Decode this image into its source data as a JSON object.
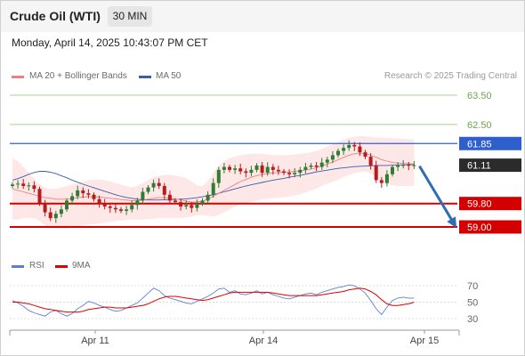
{
  "header": {
    "title": "Crude Oil (WTI)",
    "timeframe": "30 MIN"
  },
  "datetime": "Monday, April 14, 2025 10:43:07 PM CET",
  "copyright": "Research © 2025 Trading Central",
  "colors": {
    "ma20": "#f08080",
    "ma50": "#3a5ea8",
    "rsi": "#5b7fd6",
    "rsi_ma": "#e00000",
    "resistance_line": "#2e5fcc",
    "support_line": "#d40000",
    "target_line": "#a8d48a",
    "candle_up": "#2e7d32",
    "candle_down": "#b71c1c",
    "arrow": "#2f6db3"
  },
  "chart_data": [
    {
      "type": "candlestick",
      "title": "Crude Oil (WTI)",
      "interval": "30 MIN",
      "legend": [
        {
          "name": "MA 20 + Bollinger Bands",
          "color": "#f08080"
        },
        {
          "name": "MA 50",
          "color": "#3a5ea8"
        }
      ],
      "x_tick_labels": [
        "Apr 11",
        "Apr 14",
        "Apr 15"
      ],
      "ylim": [
        58.9,
        63.8
      ],
      "levels": [
        {
          "label": "63.50",
          "value": 63.5,
          "kind": "target"
        },
        {
          "label": "62.50",
          "value": 62.5,
          "kind": "target"
        },
        {
          "label": "61.85",
          "value": 61.85,
          "kind": "resistance"
        },
        {
          "label": "61.11",
          "value": 61.11,
          "kind": "last_price"
        },
        {
          "label": "59.80",
          "value": 59.8,
          "kind": "support"
        },
        {
          "label": "59.00",
          "value": 59.0,
          "kind": "support"
        }
      ],
      "close": [
        60.45,
        60.48,
        60.4,
        60.42,
        60.3,
        59.8,
        59.5,
        59.3,
        59.45,
        59.6,
        59.9,
        60.05,
        60.25,
        60.15,
        60.1,
        59.95,
        59.8,
        59.7,
        59.65,
        59.6,
        59.55,
        59.6,
        59.75,
        59.9,
        60.2,
        60.35,
        60.5,
        60.4,
        60.1,
        59.9,
        59.85,
        59.7,
        59.75,
        59.65,
        59.8,
        59.9,
        60.1,
        60.5,
        60.95,
        61.05,
        60.95,
        61.0,
        60.9,
        60.85,
        60.95,
        61.1,
        60.85,
        61.05,
        60.95,
        60.9,
        60.85,
        60.8,
        60.85,
        60.95,
        61.05,
        61.1,
        61.05,
        61.2,
        61.3,
        61.45,
        61.6,
        61.7,
        61.8,
        61.75,
        61.55,
        61.4,
        61.1,
        60.6,
        60.5,
        60.8,
        61.05,
        61.1,
        61.12,
        61.1,
        61.11
      ],
      "ma20": [
        60.3,
        60.25,
        60.2,
        60.15,
        60.1,
        60.05,
        60.0,
        59.98,
        59.95,
        59.95,
        59.95,
        59.98,
        60.0,
        60.02,
        60.03,
        60.03,
        60.02,
        60.0,
        59.98,
        59.96,
        59.94,
        59.92,
        59.9,
        59.9,
        59.92,
        59.95,
        59.98,
        60.0,
        60.0,
        59.98,
        59.96,
        59.92,
        59.88,
        59.85,
        59.85,
        59.88,
        59.95,
        60.05,
        60.15,
        60.25,
        60.35,
        60.45,
        60.55,
        60.62,
        60.7,
        60.75,
        60.8,
        60.82,
        60.85,
        60.86,
        60.87,
        60.88,
        60.9,
        60.92,
        60.95,
        60.98,
        61.02,
        61.08,
        61.15,
        61.22,
        61.3,
        61.38,
        61.45,
        61.5,
        61.52,
        61.5,
        61.45,
        61.38,
        61.3,
        61.25,
        61.2,
        61.18,
        61.17,
        61.16,
        61.15
      ],
      "bb_upper": [
        61.35,
        61.25,
        61.05,
        60.85,
        60.65,
        60.45,
        60.35,
        60.3,
        60.3,
        60.35,
        60.4,
        60.45,
        60.5,
        60.55,
        60.6,
        60.62,
        60.62,
        60.6,
        60.55,
        60.5,
        60.45,
        60.4,
        60.35,
        60.4,
        60.5,
        60.6,
        60.7,
        60.75,
        60.78,
        60.78,
        60.76,
        60.72,
        60.66,
        60.55,
        60.42,
        60.4,
        60.55,
        60.85,
        61.1,
        61.25,
        61.35,
        61.4,
        61.45,
        61.48,
        61.5,
        61.5,
        61.5,
        61.48,
        61.46,
        61.45,
        61.45,
        61.46,
        61.48,
        61.5,
        61.52,
        61.55,
        61.6,
        61.68,
        61.75,
        61.82,
        61.9,
        61.98,
        62.05,
        62.08,
        62.1,
        62.1,
        62.08,
        62.06,
        62.05,
        62.04,
        62.03,
        62.02,
        62.01,
        62.0,
        61.99
      ],
      "bb_lower": [
        59.25,
        59.25,
        59.3,
        59.3,
        59.3,
        59.2,
        59.05,
        58.98,
        58.95,
        58.95,
        58.95,
        58.98,
        59.02,
        59.05,
        59.08,
        59.1,
        59.12,
        59.15,
        59.18,
        59.2,
        59.22,
        59.24,
        59.25,
        59.25,
        59.25,
        59.26,
        59.28,
        59.3,
        59.3,
        59.3,
        59.3,
        59.3,
        59.32,
        59.35,
        59.4,
        59.4,
        59.38,
        59.36,
        59.4,
        59.5,
        59.6,
        59.7,
        59.78,
        59.82,
        59.86,
        59.9,
        59.93,
        59.96,
        59.98,
        60.0,
        60.02,
        60.04,
        60.08,
        60.12,
        60.18,
        60.25,
        60.32,
        60.4,
        60.48,
        60.55,
        60.62,
        60.7,
        60.78,
        60.84,
        60.88,
        60.9,
        60.82,
        60.7,
        60.55,
        60.46,
        60.42,
        60.4,
        60.4,
        60.4,
        60.4
      ],
      "ma50": [
        60.6,
        60.65,
        60.72,
        60.8,
        60.86,
        60.9,
        60.9,
        60.87,
        60.82,
        60.75,
        60.68,
        60.6,
        60.53,
        60.46,
        60.4,
        60.34,
        60.28,
        60.22,
        60.16,
        60.1,
        60.05,
        60.01,
        59.98,
        59.95,
        59.93,
        59.92,
        59.92,
        59.92,
        59.93,
        59.93,
        59.94,
        59.95,
        59.96,
        59.98,
        60.0,
        60.03,
        60.06,
        60.1,
        60.15,
        60.2,
        60.25,
        60.3,
        60.35,
        60.4,
        60.44,
        60.48,
        60.52,
        60.56,
        60.6,
        60.63,
        60.66,
        60.7,
        60.73,
        60.76,
        60.8,
        60.84,
        60.88,
        60.91,
        60.94,
        60.97,
        61.0,
        61.02,
        61.04,
        61.06,
        61.07,
        61.08,
        61.09,
        61.1,
        61.1,
        61.1,
        61.11,
        61.12,
        61.12,
        61.13,
        61.13
      ],
      "projection": {
        "from": 61.11,
        "to": 59.0,
        "direction": "down"
      }
    },
    {
      "type": "line",
      "title": "",
      "legend": [
        {
          "name": "RSI",
          "color": "#5b7fd6"
        },
        {
          "name": "9MA",
          "color": "#e00000"
        }
      ],
      "y_tick_labels": [
        "70",
        "50",
        "30"
      ],
      "ylim": [
        20,
        80
      ],
      "series": [
        {
          "name": "RSI",
          "values": [
            52,
            49,
            45,
            40,
            37,
            35,
            33,
            38,
            40,
            36,
            33,
            36,
            42,
            46,
            51,
            49,
            46,
            44,
            41,
            39,
            40,
            43,
            46,
            49,
            55,
            61,
            67,
            64,
            58,
            55,
            53,
            51,
            49,
            48,
            51,
            54,
            57,
            61,
            66,
            67,
            62,
            64,
            60,
            59,
            61,
            64,
            60,
            62,
            59,
            57,
            55,
            54,
            56,
            58,
            60,
            61,
            59,
            62,
            64,
            66,
            68,
            69,
            71,
            70,
            66,
            61,
            52,
            42,
            35,
            44,
            52,
            55,
            56,
            55,
            55
          ]
        },
        {
          "name": "9MA",
          "values": [
            50,
            50,
            49,
            48,
            46,
            44,
            42,
            41,
            40,
            39,
            38,
            38,
            38,
            39,
            41,
            42,
            43,
            44,
            44,
            43,
            43,
            43,
            44,
            45,
            46,
            48,
            51,
            54,
            56,
            57,
            57,
            56,
            55,
            54,
            53,
            52,
            53,
            55,
            57,
            59,
            61,
            62,
            62,
            62,
            62,
            62,
            62,
            62,
            61,
            60,
            59,
            58,
            58,
            58,
            58,
            58,
            58,
            59,
            60,
            61,
            62,
            63,
            65,
            66,
            67,
            66,
            63,
            59,
            53,
            48,
            46,
            46,
            47,
            48,
            50
          ]
        }
      ]
    }
  ]
}
